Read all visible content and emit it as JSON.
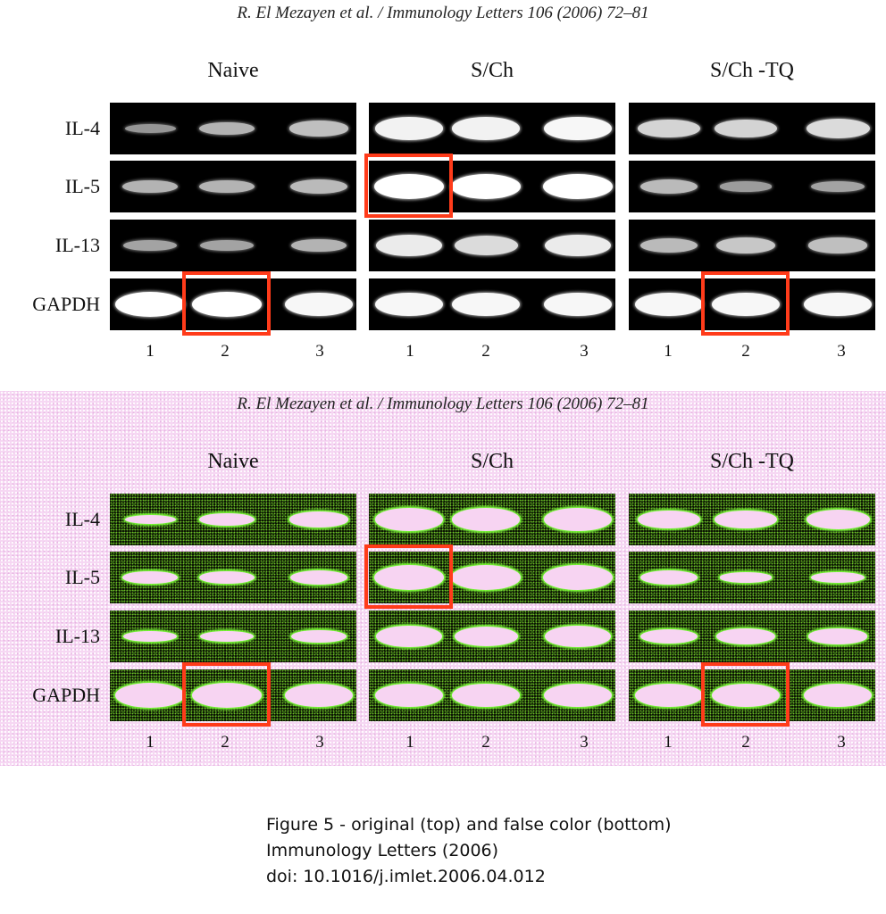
{
  "citation": "R. El Mezayen et al. / Immunology Letters 106 (2006) 72–81",
  "groups": [
    {
      "label": "Naive",
      "lanes": [
        "1",
        "2",
        "3"
      ]
    },
    {
      "label": "S/Ch",
      "lanes": [
        "1",
        "2",
        "3"
      ]
    },
    {
      "label": "S/Ch -TQ",
      "lanes": [
        "1",
        "2",
        "3"
      ]
    }
  ],
  "rows": [
    "IL-4",
    "IL-5",
    "IL-13",
    "GAPDH"
  ],
  "band_intensity": {
    "IL-4": [
      [
        0.25,
        0.45,
        0.55
      ],
      [
        0.9,
        0.9,
        0.95
      ],
      [
        0.7,
        0.7,
        0.75
      ]
    ],
    "IL-5": [
      [
        0.45,
        0.45,
        0.5
      ],
      [
        1.0,
        1.0,
        1.0
      ],
      [
        0.5,
        0.3,
        0.35
      ]
    ],
    "IL-13": [
      [
        0.35,
        0.35,
        0.45
      ],
      [
        0.85,
        0.75,
        0.85
      ],
      [
        0.5,
        0.6,
        0.55
      ]
    ],
    "GAPDH": [
      [
        1.0,
        1.0,
        0.95
      ],
      [
        0.95,
        0.95,
        0.95
      ],
      [
        0.95,
        0.95,
        0.95
      ]
    ]
  },
  "highlights": [
    {
      "row": "IL-5",
      "group": 1,
      "lane": 0
    },
    {
      "row": "GAPDH",
      "group": 0,
      "lane": 1
    },
    {
      "row": "GAPDH",
      "group": 2,
      "lane": 1
    }
  ],
  "colors": {
    "highlight": "#ff3b1a",
    "false_color_background": "#f6d7f3",
    "false_color_band": "#f7d4f2",
    "false_color_edge": "#7dff3a"
  },
  "caption": {
    "line1": "Figure 5 - original (top) and false color (bottom)",
    "line2": "Immunology Letters (2006)",
    "line3": "doi: 10.1016/j.imlet.2006.04.012"
  }
}
